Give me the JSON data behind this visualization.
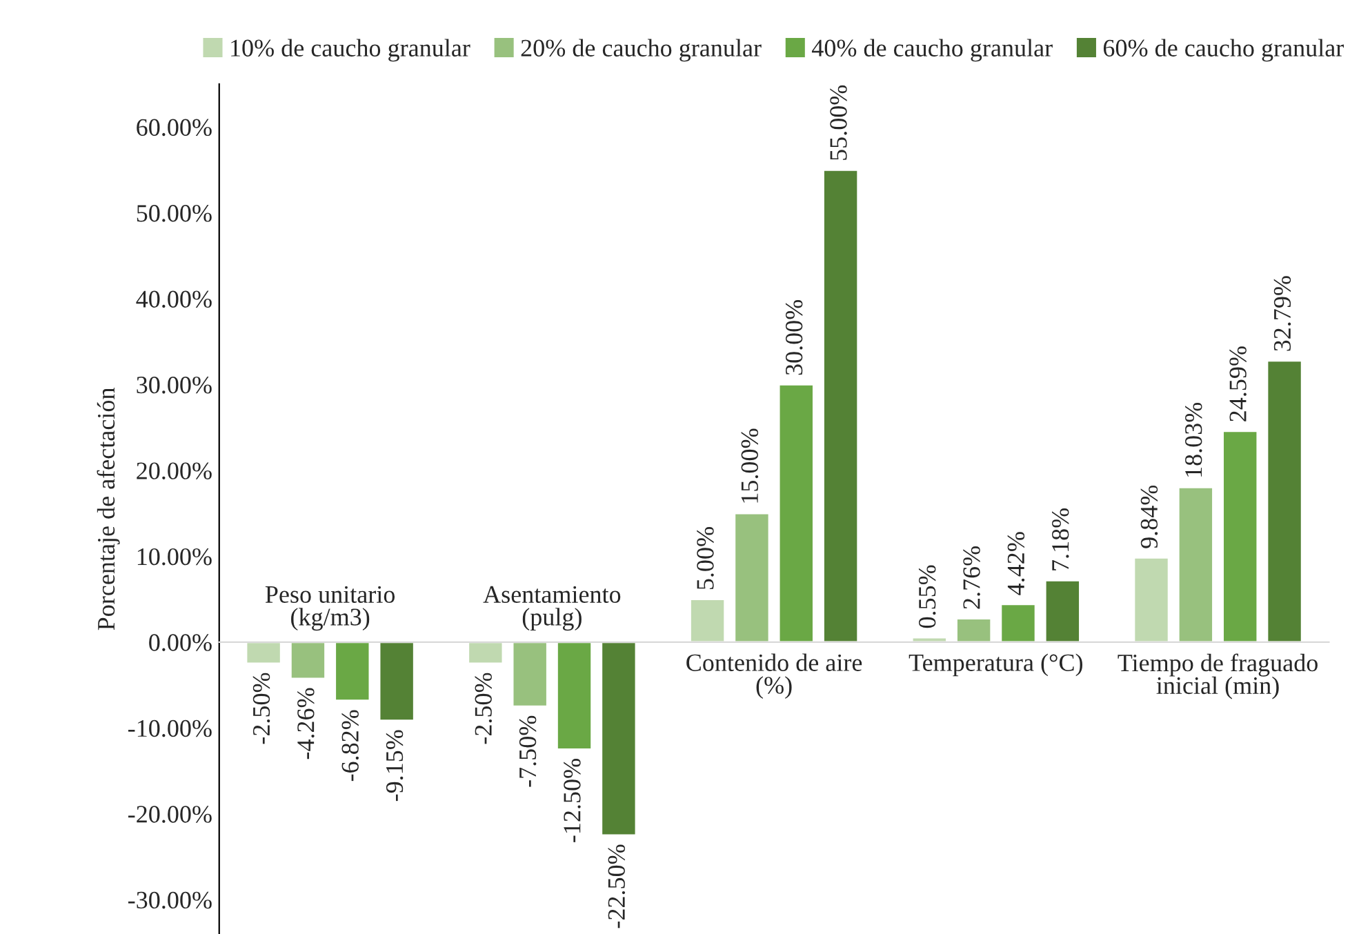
{
  "chart_data": {
    "type": "bar",
    "ylabel": "Porcentaje de afectación",
    "categories": [
      "Peso unitario\n(kg/m3)",
      "Asentamiento\n(pulg)",
      "Contenido de aire\n(%)",
      "Temperatura (°C)",
      "Tiempo de fraguado\ninicial (min)"
    ],
    "series": [
      {
        "name": "10% de caucho granular",
        "color": "#c0d9b0",
        "values": [
          -2.5,
          -2.5,
          5.0,
          0.55,
          9.84
        ],
        "value_labels": [
          "-2.50%",
          "-2.50%",
          "5.00%",
          "0.55%",
          "9.84%"
        ]
      },
      {
        "name": "20% de caucho granular",
        "color": "#98c17e",
        "values": [
          -4.26,
          -7.5,
          15.0,
          2.76,
          18.03
        ],
        "value_labels": [
          "-4.26%",
          "-7.50%",
          "15.00%",
          "2.76%",
          "18.03%"
        ]
      },
      {
        "name": "40% de caucho granular",
        "color": "#6aa845",
        "values": [
          -6.82,
          -12.5,
          30.0,
          4.42,
          24.59
        ],
        "value_labels": [
          "-6.82%",
          "-12.50%",
          "30.00%",
          "4.42%",
          "24.59%"
        ]
      },
      {
        "name": "60% de caucho granular",
        "color": "#548235",
        "values": [
          -9.15,
          -22.5,
          55.0,
          7.18,
          32.79
        ],
        "value_labels": [
          "-9.15%",
          "-22.50%",
          "55.00%",
          "7.18%",
          "32.79%"
        ]
      }
    ],
    "ylim": [
      -34,
      65
    ],
    "yticks": [
      {
        "value": -30,
        "label": "-30.00%"
      },
      {
        "value": -20,
        "label": "-20.00%"
      },
      {
        "value": -10,
        "label": "-10.00%"
      },
      {
        "value": 0,
        "label": "0.00%"
      },
      {
        "value": 10,
        "label": "10.00%"
      },
      {
        "value": 20,
        "label": "20.00%"
      },
      {
        "value": 30,
        "label": "30.00%"
      },
      {
        "value": 40,
        "label": "40.00%"
      },
      {
        "value": 50,
        "label": "50.00%"
      },
      {
        "value": 60,
        "label": "60.00%"
      }
    ],
    "grid": false,
    "legend": "top"
  }
}
